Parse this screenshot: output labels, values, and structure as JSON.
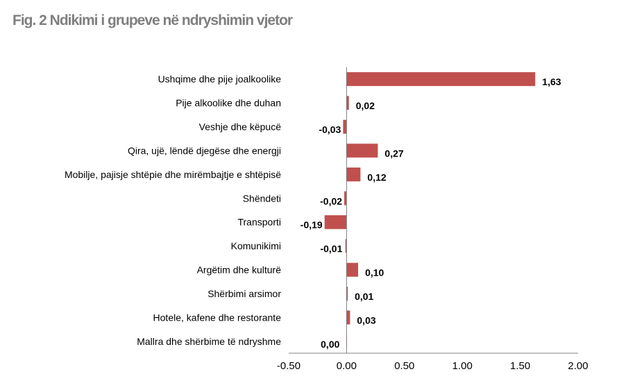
{
  "chart_data": {
    "type": "bar",
    "orientation": "horizontal",
    "title": "Fig. 2 Ndikimi i grupeve në ndryshimin vjetor",
    "xlabel": "",
    "ylabel": "",
    "categories": [
      "Ushqime dhe pije joalkoolike",
      "Pije alkoolike dhe duhan",
      "Veshje dhe këpucë",
      "Qira, ujë, lëndë djegëse dhe energji",
      "Mobilje, pajisje shtëpie dhe mirëmbajtje e shtëpisë",
      "Shëndeti",
      "Transporti",
      "Komunikimi",
      "Argëtim dhe kulturë",
      "Shërbimi arsimor",
      "Hotele, kafene dhe restorante",
      "Mallra dhe shërbime të ndryshme"
    ],
    "values": [
      1.63,
      0.02,
      -0.03,
      0.27,
      0.12,
      -0.02,
      -0.19,
      -0.01,
      0.1,
      0.01,
      0.03,
      0.0
    ],
    "data_labels": [
      "1,63",
      "0,02",
      "-0,03",
      "0,27",
      "0,12",
      "-0,02",
      "-0,19",
      "-0,01",
      "0,10",
      "0,01",
      "0,03",
      "0,00"
    ],
    "xlim": [
      -0.5,
      2.0
    ],
    "xticks": [
      "-0.50",
      "0.00",
      "0.50",
      "1.00",
      "1.50",
      "2.00"
    ],
    "xtick_values": [
      -0.5,
      0,
      0.5,
      1.0,
      1.5,
      2.0
    ],
    "grid": false,
    "legend": "none",
    "bar_color": "#c0504d",
    "title_color": "#7f7f7f"
  }
}
